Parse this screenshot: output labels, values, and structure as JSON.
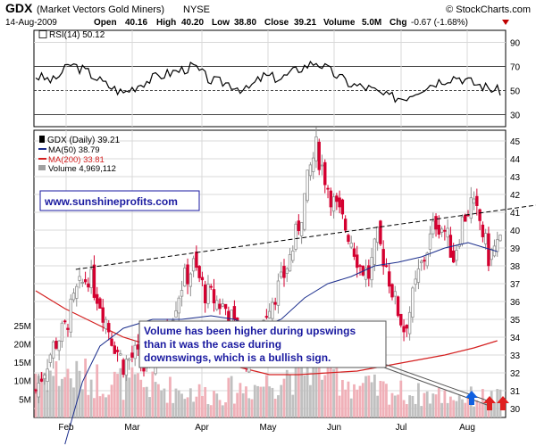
{
  "header": {
    "symbol": "GDX",
    "name": "(Market Vectors Gold Miners)",
    "exchange": "NYSE",
    "copyright": "© StockCharts.com",
    "date": "14-Aug-2009",
    "open_label": "Open",
    "open": "40.16",
    "high_label": "High",
    "high": "40.20",
    "low_label": "Low",
    "low": "38.80",
    "close_label": "Close",
    "close": "39.21",
    "volume_label": "Volume",
    "volume": "5.0M",
    "chg_label": "Chg",
    "chg": "-0.67 (-1.68%)"
  },
  "rsi_panel": {
    "legend": "RSI(14) 50.12",
    "ticks": [
      90,
      70,
      50,
      30
    ],
    "ylim": [
      20,
      100
    ],
    "ref_lines": [
      70,
      50,
      30
    ]
  },
  "legend": {
    "gdx": "GDX (Daily) 39.21",
    "ma50": "MA(50) 38.79",
    "ma200": "MA(200) 33.81",
    "volume": "Volume 4,969,112"
  },
  "colors": {
    "up": "#909090",
    "down": "#d40030",
    "ma50": "#1a2d8c",
    "ma200": "#d42020",
    "vol_up": "#c0c0c0",
    "vol_down": "#f0b0b8",
    "arrow_up": "#1060e0",
    "arrow_down": "#e02020",
    "annotation_text": "#1a1aa0",
    "website_text": "#1a1aa0"
  },
  "annotations": {
    "website": "www.sunshineprofits.com",
    "note": "Volume has been higher during upswings than it was the case during downswings, which is a bullish sign."
  },
  "chart_data": {
    "type": "candlestick",
    "x_ticks": [
      "Feb",
      "Mar",
      "Apr",
      "May",
      "Jun",
      "Jul",
      "Aug"
    ],
    "price_ticks": [
      30,
      31,
      32,
      33,
      34,
      35,
      36,
      37,
      38,
      39,
      40,
      41,
      42,
      43,
      44,
      45
    ],
    "price_ylim": [
      29.5,
      45.6
    ],
    "volume_ticks": [
      "5M",
      "10M",
      "15M",
      "20M",
      "25M"
    ],
    "volume_tick_values": [
      5,
      10,
      15,
      20,
      25
    ],
    "volume_ylim": [
      0,
      31
    ],
    "grid": true,
    "trend_line": {
      "from": [
        0.08,
        37.8
      ],
      "to": [
        1.0,
        41.4
      ]
    },
    "days": 140,
    "close_path": [
      [
        0,
        31.0
      ],
      [
        6,
        33.5
      ],
      [
        10,
        34.5
      ],
      [
        14,
        36.5
      ],
      [
        18,
        37.5
      ],
      [
        22,
        36.0
      ],
      [
        26,
        34.0
      ],
      [
        30,
        32.5
      ],
      [
        34,
        33.0
      ],
      [
        38,
        32.0
      ],
      [
        42,
        33.5
      ],
      [
        46,
        35.0
      ],
      [
        50,
        37.0
      ],
      [
        54,
        38.0
      ],
      [
        58,
        36.5
      ],
      [
        62,
        36.0
      ],
      [
        66,
        35.5
      ],
      [
        68,
        34.5
      ],
      [
        72,
        33.0
      ],
      [
        76,
        34.0
      ],
      [
        80,
        36.0
      ],
      [
        84,
        37.0
      ],
      [
        88,
        39.0
      ],
      [
        91,
        41.0
      ],
      [
        94,
        43.5
      ],
      [
        96,
        44.6
      ],
      [
        99,
        43.0
      ],
      [
        102,
        41.5
      ],
      [
        105,
        40.5
      ],
      [
        108,
        39.5
      ],
      [
        111,
        38.0
      ],
      [
        114,
        37.5
      ],
      [
        117,
        39.5
      ],
      [
        120,
        38.0
      ],
      [
        123,
        36.0
      ],
      [
        126,
        34.5
      ],
      [
        128,
        35.5
      ],
      [
        131,
        37.5
      ],
      [
        134,
        39.0
      ],
      [
        137,
        40.5
      ],
      [
        140,
        40.0
      ],
      [
        143,
        38.5
      ],
      [
        146,
        40.5
      ],
      [
        149,
        41.5
      ],
      [
        152,
        40.5
      ],
      [
        155,
        38.5
      ],
      [
        158,
        39.2
      ]
    ],
    "ma50_path": [
      [
        10,
        28.0
      ],
      [
        16,
        31.5
      ],
      [
        22,
        33.5
      ],
      [
        30,
        34.5
      ],
      [
        40,
        35.0
      ],
      [
        50,
        35.0
      ],
      [
        60,
        35.2
      ],
      [
        68,
        35.0
      ],
      [
        76,
        34.5
      ],
      [
        84,
        35.0
      ],
      [
        92,
        36.2
      ],
      [
        100,
        37.0
      ],
      [
        108,
        37.4
      ],
      [
        116,
        38.0
      ],
      [
        124,
        38.2
      ],
      [
        132,
        38.5
      ],
      [
        140,
        39.0
      ],
      [
        148,
        39.3
      ],
      [
        158,
        38.8
      ]
    ],
    "ma200_path": [
      [
        0,
        36.6
      ],
      [
        10,
        35.6
      ],
      [
        20,
        34.8
      ],
      [
        30,
        34.0
      ],
      [
        40,
        33.5
      ],
      [
        50,
        33.1
      ],
      [
        60,
        32.8
      ],
      [
        70,
        32.3
      ],
      [
        80,
        31.9
      ],
      [
        90,
        31.9
      ],
      [
        100,
        32.0
      ],
      [
        110,
        32.1
      ],
      [
        120,
        32.4
      ],
      [
        130,
        32.7
      ],
      [
        140,
        33.0
      ],
      [
        150,
        33.4
      ],
      [
        158,
        33.8
      ]
    ],
    "rsi_path": [
      [
        0,
        62
      ],
      [
        6,
        58
      ],
      [
        12,
        72
      ],
      [
        18,
        65
      ],
      [
        24,
        55
      ],
      [
        30,
        48
      ],
      [
        36,
        56
      ],
      [
        42,
        62
      ],
      [
        48,
        66
      ],
      [
        54,
        70
      ],
      [
        60,
        58
      ],
      [
        66,
        56
      ],
      [
        72,
        50
      ],
      [
        78,
        62
      ],
      [
        84,
        60
      ],
      [
        90,
        68
      ],
      [
        96,
        74
      ],
      [
        102,
        64
      ],
      [
        108,
        55
      ],
      [
        114,
        52
      ],
      [
        120,
        45
      ],
      [
        126,
        44
      ],
      [
        132,
        52
      ],
      [
        138,
        58
      ],
      [
        144,
        62
      ],
      [
        150,
        56
      ],
      [
        158,
        50
      ]
    ],
    "volume_path": [
      [
        0,
        12
      ],
      [
        20,
        10
      ],
      [
        40,
        8
      ],
      [
        60,
        6
      ],
      [
        80,
        9
      ],
      [
        95,
        15
      ],
      [
        110,
        8
      ],
      [
        130,
        6
      ],
      [
        158,
        5
      ]
    ]
  }
}
